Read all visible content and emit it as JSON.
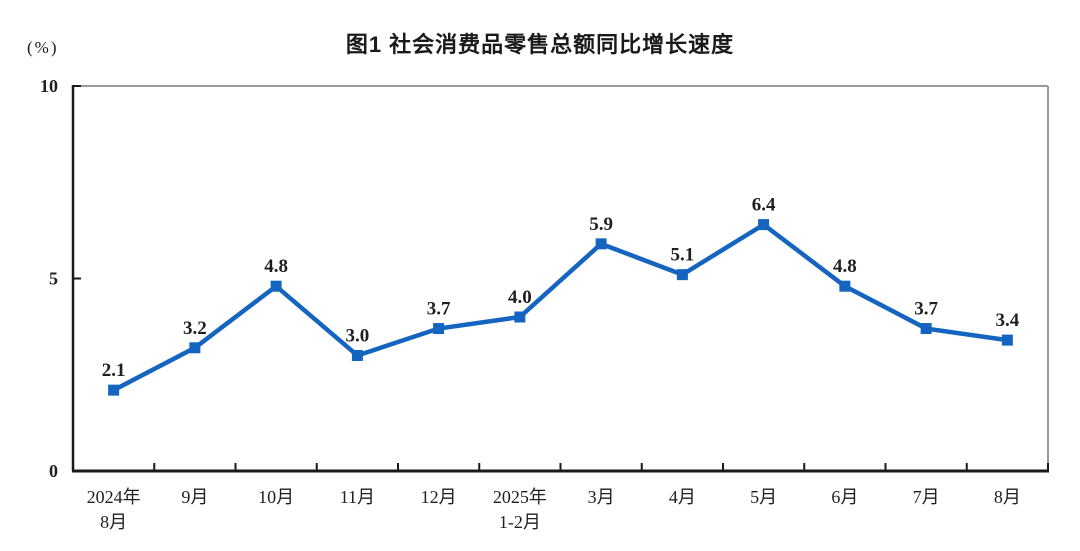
{
  "chart_data": {
    "type": "line",
    "title": "图1 社会消费品零售总额同比增长速度",
    "unit_label": "(%)",
    "categories": [
      "2024年\n8月",
      "9月",
      "10月",
      "11月",
      "12月",
      "2025年\n1-2月",
      "3月",
      "4月",
      "5月",
      "6月",
      "7月",
      "8月"
    ],
    "series": [
      {
        "name": "社会消费品零售总额同比增长速度",
        "values": [
          2.1,
          3.2,
          4.8,
          3.0,
          3.7,
          4.0,
          5.9,
          5.1,
          6.4,
          4.8,
          3.7,
          3.4
        ],
        "data_labels": [
          "2.1",
          "3.2",
          "4.8",
          "3.0",
          "3.7",
          "4.0",
          "5.9",
          "5.1",
          "6.4",
          "4.8",
          "3.7",
          "3.4"
        ]
      }
    ],
    "xlabel": "",
    "ylabel": "",
    "ylim": [
      0,
      10
    ],
    "yticks": [
      "0",
      "5",
      "10"
    ],
    "grid": false,
    "legend": "none",
    "marker": "square",
    "colors": {
      "line": "#1565C0",
      "marker": "#1565C0",
      "data_label": "#1f1f1f",
      "tick_label": "#1f1f1f",
      "axis": "#1a1a1a",
      "frame": "#999999",
      "background": "#ffffff"
    }
  }
}
